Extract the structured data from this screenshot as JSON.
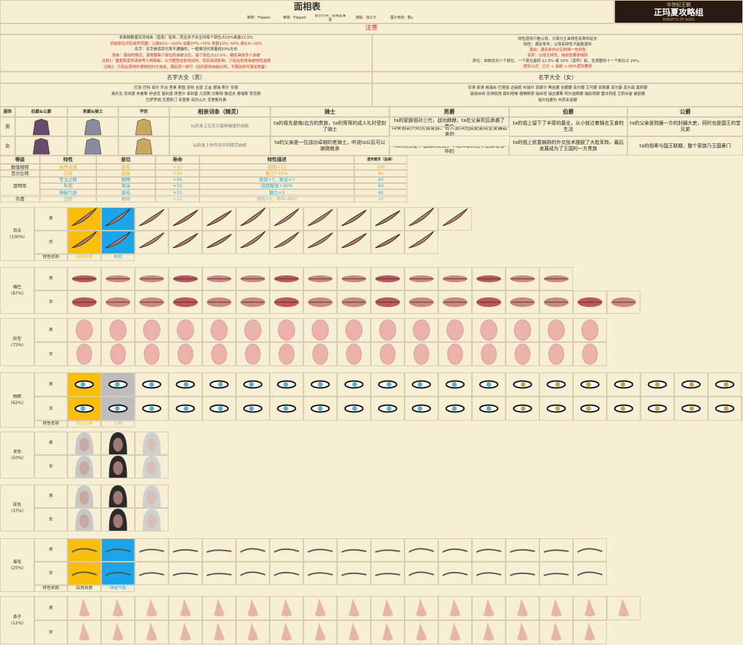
{
  "header": {
    "title": "面相表",
    "credits": [
      "制表：Flipped",
      "审核：Flipped",
      "部分分类：琉璃星海屋",
      "排版：加工才",
      "图片修改：群u"
    ],
    "logo_top": "中世纪王朝",
    "logo_main": "正玛夏攻略组",
    "logo_sub": "KNIGHTS OF AGES"
  },
  "notice": {
    "title": "注意",
    "left": [
      {
        "text": "本面相数值仅对纯血（直系）有效，而且孩子出生时每个部位占10%或者12.5%",
        "color": "#333"
      },
      {
        "text": "初始部位对应自然范围：公爵62%~100%  伯爵37%~75%  男爵12%~50%  骑士0~25%",
        "color": "#e02020"
      },
      {
        "text": "名字：名字是农民代表不通婚的，一般情况代表着低50%左右",
        "color": "#333"
      },
      {
        "text": "混血：混血的情况，请根据每个部位的血统占比，每个部位占12.5%，确定具体多少血统",
        "color": "#e02020"
      },
      {
        "text": "注释1：重型和变异请参考人物面板，认为整型在影响加持，就实用该影响，只有在拒绝血统特性选择",
        "color": "#e02020"
      },
      {
        "text": "注释2：只有在获得外貌特性时才加成，满足其一即可（如何获得血统比例，不满足即可满足常备）",
        "color": "#e02020"
      }
    ],
    "right": [
      {
        "text": "特性遗传只看父母，大部分主血特性有寿命延长",
        "color": "#333"
      },
      {
        "text": "特性：满足条件，父母有特性不能跳遗传",
        "color": "#333"
      },
      {
        "text": "混血：满足条件必定的唯一性特性",
        "color": "#e02020"
      },
      {
        "text": "变异：父母无特性，纯血性要求相同",
        "color": "#e02020"
      },
      {
        "text": "部位：血统总共八个部位，一个部位最低 12.5% 或 10%（变异）血，至调整的十一个部位占 20%。",
        "color": "#333"
      },
      {
        "text": "遗传公式：已方 + 血统 + 80%遗传要求",
        "color": "#e02020"
      }
    ]
  },
  "names": [
    {
      "title": "名字大全（男）",
      "lines": [
        "巴洛 巴特 菲尔 乔治 里奥 斯图 诺特 吉恩 尤金 德瑞 斯尔 安德",
        "奥托瓦 安柯恩 布鲁斯 伊述克 普利恩 西里尔 菲利普 凡尼斯 切斯特 鲁道夫 泰瑞斯 贾克斯",
        "巴萨罗姆 克里斯汀 亚里斯 亚历山大 克里斯托弗"
      ]
    },
    {
      "title": "名字大全（女）",
      "lines": [
        "安琪 麦琪 格瑞丝 巴塔丽 达赫妮 布瑞尔 菲娜尔 黑岩娜 吉娜娜 菲尔娜 艾可娜 菲索娜 菲尔瑟 道尔森 嘉莉娜",
        "赫丽丝特 安琪丽塔 薛利塔琳 德琳斯塔 瑞丝塔 瑞吉娜斯 阿尔迪斯娜 瑞欧塔娜 雷法莉娅 艾莉丝曼 缇丽娜",
        "瑞尔拉娜尔 布莉亚诺娜"
      ]
    }
  ],
  "genders": [
    "男",
    "女"
  ],
  "rank_table": {
    "headers": [
      "服饰",
      "伯爵&公爵",
      "男爵&骑士",
      "平民",
      "相亲词条（精灵）",
      "骑士",
      "男爵",
      "伯爵",
      "公爵"
    ],
    "rows": [
      {
        "cells": [
          "ta的身上又东方森林国度的血统",
          "ta的祖先是南/北方的贵族，ta的哥哥的成人礼时受封了骑士",
          "ta的家族祖孙三代，战功赫赫，ta在父亲死后承袭了爵位",
          "ta的祖上留下了丰厚的基业，从小就过着锦衣玉食的生活",
          "ta的父亲是割据一方的封疆大吏，同时也是国王的堂兄弟"
        ]
      },
      {
        "cells": [
          "ta的身上有传说中的精灵血统",
          "ta的父亲是一位战功卓越的老骑士，听说ta以后可以被倒继承",
          "ta的父亲是个低调的贵族，不过ta家的日子还算很奢华的",
          "ta的祖上依靠娴熟的外交技术摆脱了大批军阵，最后发展成为了王国的一方贵族",
          "ta的祖辈与国王联姻，整个家族乃王国豪门"
        ]
      }
    ],
    "extra": "ta来自新兴的贵族家族，有人说ta氏族是靠商业发展起来的"
  },
  "traits_table": {
    "headers": [
      "等级",
      "特性",
      "部位",
      "寿命",
      "特性描述",
      "遗传需求（血缘）"
    ],
    "group": "固特性",
    "rows": [
      {
        "grade": "数值相特",
        "trait": "自然共感",
        "part": "眉毛",
        "life": "+30",
        "desc": "感知+12",
        "need": "100",
        "color": "#f0a818"
      },
      {
        "grade": "百分比特",
        "trait": "白皙",
        "part": "皮肤",
        "life": "+30",
        "desc": "魅力+15%",
        "need": "80",
        "color": "#f0a818"
      },
      {
        "trait": "专注之眸",
        "part": "眼睛",
        "life": "+45",
        "desc": "感知+7，意志+7",
        "need": "60",
        "color": "#1aa3e8"
      },
      {
        "trait": "听风",
        "part": "耳朵",
        "life": "+15",
        "desc": "远程瞄准+30%",
        "need": "60",
        "color": "#1aa3e8"
      },
      {
        "trait": "神秘气质",
        "part": "眉毛",
        "life": "+15",
        "desc": "魅力+3",
        "need": "60",
        "color": "#1aa3e8"
      },
      {
        "grade": "负面",
        "trait": "丑陋",
        "part": "眼睛",
        "life": "+15",
        "desc": "感知+5，命中-40%",
        "need": "20",
        "color": "#a8a8a8"
      }
    ]
  },
  "trait_label": "特性名称",
  "sections": [
    {
      "name": "耳朵",
      "percent": "(100%)",
      "traits": [
        {
          "name": "自然共感",
          "color": "#f9be0a"
        },
        {
          "name": "听风",
          "color": "#1ba6ea"
        }
      ]
    },
    {
      "name": "嘴巴",
      "percent": "(87%)"
    },
    {
      "name": "脸型",
      "percent": "(75%)"
    },
    {
      "name": "眼睛",
      "percent": "(62%)",
      "traits": [
        {
          "name": "专注之眸",
          "color": "#f9be0a"
        },
        {
          "name": "丑陋",
          "color": "#bdbdbd"
        }
      ]
    },
    {
      "name": "发色",
      "percent": "(50%)"
    },
    {
      "name": "肤色",
      "percent": "(37%)"
    },
    {
      "name": "眉毛",
      "percent": "(25%)",
      "traits": [
        {
          "name": "自然共感",
          "color": "#f9be0a"
        },
        {
          "name": "神秘气质",
          "color": "#1ba6ea"
        }
      ]
    },
    {
      "name": "鼻子",
      "percent": "(12%)"
    }
  ]
}
